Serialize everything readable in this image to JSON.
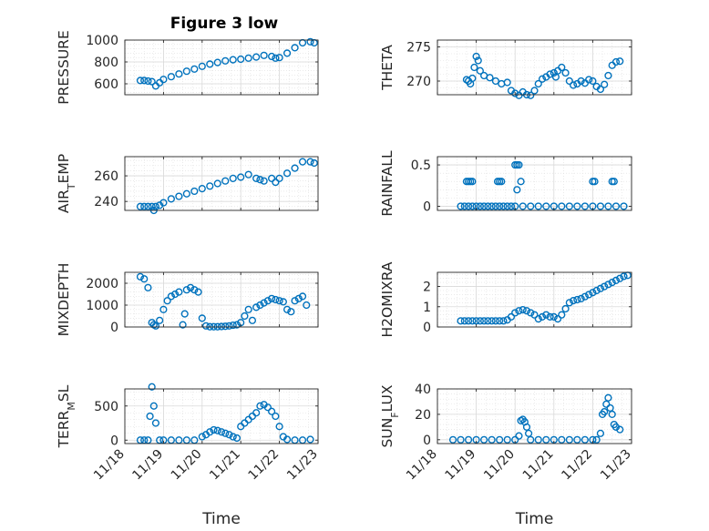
{
  "title": "Figure 3 low",
  "series_color": "#0072BD",
  "chart_data": [
    {
      "type": "scatter",
      "name": "panel-pressure",
      "ylabel": "PRESSURE",
      "ylim": [
        500,
        1000
      ],
      "yticks": [
        600,
        800,
        1000
      ],
      "yticklabels": [
        "600",
        "800",
        "1000"
      ],
      "xlim": [
        18,
        23
      ],
      "xticks": [
        18,
        19,
        20,
        21,
        22,
        23
      ],
      "xticklabels": [],
      "xlabel": "",
      "grid": true,
      "minor_grid": true,
      "x": [
        18.4,
        18.5,
        18.6,
        18.7,
        18.8,
        18.9,
        19.0,
        19.2,
        19.4,
        19.6,
        19.8,
        20.0,
        20.2,
        20.4,
        20.6,
        20.8,
        21.0,
        21.2,
        21.4,
        21.6,
        21.8,
        21.9,
        22.0,
        22.2,
        22.4,
        22.6,
        22.8,
        22.9
      ],
      "y": [
        630,
        630,
        625,
        620,
        580,
        610,
        640,
        665,
        690,
        715,
        735,
        760,
        780,
        795,
        810,
        820,
        825,
        835,
        845,
        860,
        850,
        835,
        840,
        880,
        930,
        975,
        985,
        975
      ]
    },
    {
      "type": "scatter",
      "name": "panel-theta",
      "ylabel": "THETA",
      "ylim": [
        268,
        276
      ],
      "yticks": [
        270,
        275
      ],
      "yticklabels": [
        "270",
        "275"
      ],
      "xlim": [
        18,
        23
      ],
      "xticks": [
        18,
        19,
        20,
        21,
        22,
        23
      ],
      "xticklabels": [],
      "xlabel": "",
      "grid": true,
      "minor_grid": true,
      "x": [
        18.75,
        18.8,
        18.85,
        18.9,
        18.95,
        19.0,
        19.05,
        19.1,
        19.2,
        19.35,
        19.5,
        19.65,
        19.8,
        19.9,
        20.0,
        20.1,
        20.2,
        20.3,
        20.4,
        20.5,
        20.6,
        20.7,
        20.8,
        20.9,
        21.0,
        21.05,
        21.1,
        21.2,
        21.3,
        21.4,
        21.5,
        21.6,
        21.7,
        21.8,
        21.9,
        22.0,
        22.1,
        22.2,
        22.3,
        22.4,
        22.5,
        22.6,
        22.7
      ],
      "y": [
        270.2,
        270.0,
        269.6,
        270.4,
        272.0,
        273.6,
        273.0,
        271.5,
        270.8,
        270.5,
        270.0,
        269.6,
        269.8,
        268.6,
        268.2,
        267.9,
        268.4,
        268.0,
        267.9,
        268.6,
        269.6,
        270.3,
        270.6,
        271.0,
        271.2,
        270.6,
        271.5,
        272.0,
        271.2,
        270.0,
        269.4,
        269.6,
        270.0,
        269.7,
        270.2,
        270.0,
        269.2,
        268.8,
        269.5,
        270.8,
        272.3,
        272.8,
        272.9
      ]
    },
    {
      "type": "scatter",
      "name": "panel-air-temp",
      "ylabel": "AIR_TEMP",
      "ylim": [
        233,
        275
      ],
      "yticks": [
        240,
        260
      ],
      "yticklabels": [
        "240",
        "260"
      ],
      "xlim": [
        18,
        23
      ],
      "xticks": [
        18,
        19,
        20,
        21,
        22,
        23
      ],
      "xticklabels": [],
      "xlabel": "",
      "grid": true,
      "minor_grid": true,
      "x": [
        18.4,
        18.5,
        18.6,
        18.7,
        18.75,
        18.8,
        18.9,
        19.0,
        19.2,
        19.4,
        19.6,
        19.8,
        20.0,
        20.2,
        20.4,
        20.6,
        20.8,
        21.0,
        21.2,
        21.4,
        21.5,
        21.6,
        21.8,
        21.9,
        22.0,
        22.2,
        22.4,
        22.6,
        22.8,
        22.9
      ],
      "y": [
        236,
        236,
        236,
        236,
        233,
        236,
        237,
        239,
        242,
        244,
        246,
        248,
        250,
        252,
        254,
        256,
        258,
        259,
        261,
        258,
        257,
        256,
        258,
        255,
        258,
        262,
        266,
        271,
        271,
        270
      ]
    },
    {
      "type": "scatter",
      "name": "panel-rainfall",
      "ylabel": "RAINFALL",
      "ylim": [
        -0.05,
        0.6
      ],
      "yticks": [
        0,
        0.5
      ],
      "yticklabels": [
        "0",
        "0.5"
      ],
      "xlim": [
        18,
        23
      ],
      "xticks": [
        18,
        19,
        20,
        21,
        22,
        23
      ],
      "xticklabels": [],
      "xlabel": "",
      "grid": true,
      "minor_grid": true,
      "x": [
        18.6,
        18.7,
        18.8,
        18.9,
        19.0,
        19.1,
        19.2,
        19.3,
        19.4,
        19.5,
        19.6,
        19.7,
        19.8,
        19.9,
        20.0,
        20.2,
        20.4,
        20.6,
        20.8,
        21.0,
        21.2,
        21.4,
        21.6,
        21.8,
        22.0,
        22.2,
        22.4,
        22.6,
        22.8,
        18.75,
        18.8,
        18.85,
        18.9,
        19.55,
        19.6,
        19.65,
        20.0,
        20.05,
        20.1,
        20.15,
        20.05,
        22.0,
        22.05,
        22.5,
        22.55
      ],
      "y": [
        0,
        0,
        0,
        0,
        0,
        0,
        0,
        0,
        0,
        0,
        0,
        0,
        0,
        0,
        0,
        0,
        0,
        0,
        0,
        0,
        0,
        0,
        0,
        0,
        0,
        0,
        0,
        0,
        0,
        0.3,
        0.3,
        0.3,
        0.3,
        0.3,
        0.3,
        0.3,
        0.5,
        0.5,
        0.5,
        0.3,
        0.2,
        0.3,
        0.3,
        0.3,
        0.3
      ]
    },
    {
      "type": "scatter",
      "name": "panel-mixdepth",
      "ylabel": "MIXDEPTH",
      "ylim": [
        0,
        2500
      ],
      "yticks": [
        0,
        1000,
        2000
      ],
      "yticklabels": [
        "0",
        "1000",
        "2000"
      ],
      "xlim": [
        18,
        23
      ],
      "xticks": [
        18,
        19,
        20,
        21,
        22,
        23
      ],
      "xticklabels": [],
      "xlabel": "",
      "grid": true,
      "minor_grid": true,
      "x": [
        18.4,
        18.5,
        18.6,
        18.7,
        18.75,
        18.8,
        18.9,
        19.0,
        19.1,
        19.2,
        19.3,
        19.4,
        19.5,
        19.55,
        19.6,
        19.7,
        19.8,
        19.9,
        20.0,
        20.1,
        20.2,
        20.3,
        20.4,
        20.5,
        20.6,
        20.7,
        20.8,
        20.9,
        21.0,
        21.1,
        21.2,
        21.3,
        21.4,
        21.5,
        21.6,
        21.7,
        21.8,
        21.9,
        22.0,
        22.1,
        22.2,
        22.3,
        22.4,
        22.5,
        22.6,
        22.7
      ],
      "y": [
        2300,
        2200,
        1800,
        200,
        100,
        50,
        300,
        800,
        1200,
        1400,
        1500,
        1600,
        100,
        600,
        1700,
        1800,
        1700,
        1600,
        400,
        50,
        10,
        10,
        10,
        20,
        30,
        50,
        80,
        100,
        200,
        500,
        800,
        300,
        900,
        1000,
        1100,
        1200,
        1300,
        1250,
        1200,
        1150,
        800,
        700,
        1200,
        1300,
        1400,
        1000
      ]
    },
    {
      "type": "scatter",
      "name": "panel-h2omixra",
      "ylabel": "H2OMIXRA",
      "ylim": [
        0,
        2.7
      ],
      "yticks": [
        0,
        1,
        2
      ],
      "yticklabels": [
        "0",
        "1",
        "2"
      ],
      "xlim": [
        18,
        23
      ],
      "xticks": [
        18,
        19,
        20,
        21,
        22,
        23
      ],
      "xticklabels": [],
      "xlabel": "",
      "grid": true,
      "minor_grid": true,
      "x": [
        18.6,
        18.7,
        18.8,
        18.9,
        19.0,
        19.1,
        19.2,
        19.3,
        19.4,
        19.5,
        19.6,
        19.7,
        19.8,
        19.9,
        20.0,
        20.1,
        20.2,
        20.3,
        20.4,
        20.5,
        20.6,
        20.7,
        20.8,
        20.9,
        21.0,
        21.1,
        21.2,
        21.3,
        21.4,
        21.5,
        21.6,
        21.7,
        21.8,
        21.9,
        22.0,
        22.1,
        22.2,
        22.3,
        22.4,
        22.5,
        22.6,
        22.7,
        22.8,
        22.9
      ],
      "y": [
        0.3,
        0.3,
        0.3,
        0.3,
        0.3,
        0.3,
        0.3,
        0.3,
        0.3,
        0.3,
        0.3,
        0.3,
        0.35,
        0.5,
        0.7,
        0.8,
        0.85,
        0.8,
        0.7,
        0.6,
        0.4,
        0.5,
        0.6,
        0.5,
        0.5,
        0.4,
        0.6,
        0.9,
        1.2,
        1.3,
        1.35,
        1.4,
        1.5,
        1.6,
        1.7,
        1.8,
        1.9,
        2.0,
        2.1,
        2.2,
        2.3,
        2.4,
        2.5,
        2.55
      ]
    },
    {
      "type": "scatter",
      "name": "panel-terr-msl",
      "ylabel": "TERR_MSL",
      "ylim": [
        -50,
        750
      ],
      "yticks": [
        0,
        500
      ],
      "yticklabels": [
        "0",
        "500"
      ],
      "xlim": [
        18,
        23
      ],
      "xticks": [
        18,
        19,
        20,
        21,
        22,
        23
      ],
      "xticklabels": [
        "11/18",
        "11/19",
        "11/20",
        "11/21",
        "11/22",
        "11/23"
      ],
      "xlabel": "Time",
      "grid": true,
      "minor_grid": true,
      "x": [
        18.4,
        18.5,
        18.6,
        18.65,
        18.7,
        18.75,
        18.8,
        18.9,
        19.0,
        19.2,
        19.4,
        19.6,
        19.8,
        20.0,
        20.1,
        20.2,
        20.3,
        20.4,
        20.5,
        20.6,
        20.7,
        20.8,
        20.9,
        21.0,
        21.1,
        21.2,
        21.3,
        21.4,
        21.5,
        21.6,
        21.7,
        21.8,
        21.9,
        22.0,
        22.1,
        22.2,
        22.4,
        22.6,
        22.8
      ],
      "y": [
        0,
        0,
        0,
        350,
        780,
        500,
        250,
        0,
        0,
        0,
        0,
        0,
        0,
        50,
        80,
        120,
        150,
        140,
        120,
        100,
        80,
        50,
        30,
        200,
        250,
        300,
        350,
        400,
        500,
        520,
        480,
        420,
        350,
        200,
        50,
        10,
        0,
        0,
        10
      ]
    },
    {
      "type": "scatter",
      "name": "panel-sun-flux",
      "ylabel": "SUN_FLUX",
      "ylim": [
        -3,
        40
      ],
      "yticks": [
        0,
        20,
        40
      ],
      "yticklabels": [
        "0",
        "20",
        "40"
      ],
      "xlim": [
        18,
        23
      ],
      "xticks": [
        18,
        19,
        20,
        21,
        22,
        23
      ],
      "xticklabels": [
        "11/18",
        "11/19",
        "11/20",
        "11/21",
        "11/22",
        "11/23"
      ],
      "xlabel": "Time",
      "grid": true,
      "minor_grid": true,
      "x": [
        18.4,
        18.6,
        18.8,
        19.0,
        19.2,
        19.4,
        19.6,
        19.8,
        20.0,
        20.1,
        20.15,
        20.2,
        20.25,
        20.3,
        20.35,
        20.4,
        20.6,
        20.8,
        21.0,
        21.2,
        21.4,
        21.6,
        21.8,
        22.0,
        22.1,
        22.2,
        22.25,
        22.3,
        22.35,
        22.4,
        22.45,
        22.5,
        22.55,
        22.6,
        22.7
      ],
      "y": [
        0,
        0,
        0,
        0,
        0,
        0,
        0,
        0,
        0,
        3,
        15,
        16,
        14,
        10,
        5,
        0,
        0,
        0,
        0,
        0,
        0,
        0,
        0,
        0,
        0,
        5,
        20,
        22,
        28,
        33,
        25,
        20,
        12,
        10,
        8
      ]
    }
  ]
}
